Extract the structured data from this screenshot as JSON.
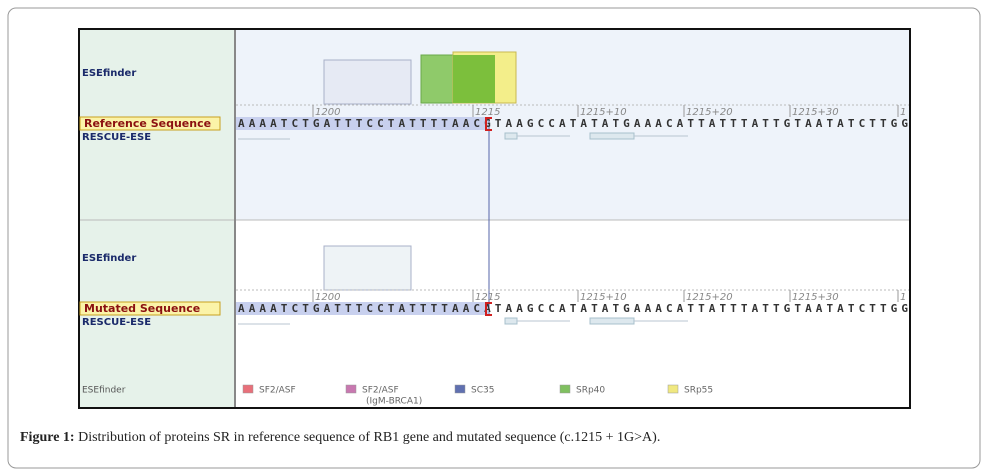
{
  "panels": [
    {
      "tool_label": "ESEfinder",
      "ruler": [
        "1200",
        "1215",
        "1215+10",
        "1215+20",
        "1215+30",
        "1"
      ],
      "sequence_label": "Reference Sequence",
      "sequence": "AAAATCTGATTTCCTATTTTAACGTAAGCCATATATGAAACATTATTTATTGTAATATCTTGG",
      "track_label": "RESCUE-ESE"
    },
    {
      "tool_label": "ESEfinder",
      "ruler": [
        "1200",
        "1215",
        "1215+10",
        "1215+20",
        "1215+30",
        "1"
      ],
      "sequence_label": "Mutated Sequence",
      "sequence": "AAAATCTGATTTCCTATTTTAACATAAGCCATATATGAAACATTATTTATTGTAATATCTTGG",
      "track_label": "RESCUE-ESE"
    }
  ],
  "legend": {
    "title": "ESEfinder",
    "items": [
      {
        "label": "SF2/ASF"
      },
      {
        "label": "SF2/ASF",
        "sublabel": "(IgM-BRCA1)"
      },
      {
        "label": "SC35"
      },
      {
        "label": "SRp40"
      },
      {
        "label": "SRp55"
      }
    ]
  },
  "caption": {
    "label": "Figure 1:",
    "text": "Distribution of proteins SR in reference sequence of RB1 gene and mutated sequence (c.1215 + 1G>A)."
  }
}
